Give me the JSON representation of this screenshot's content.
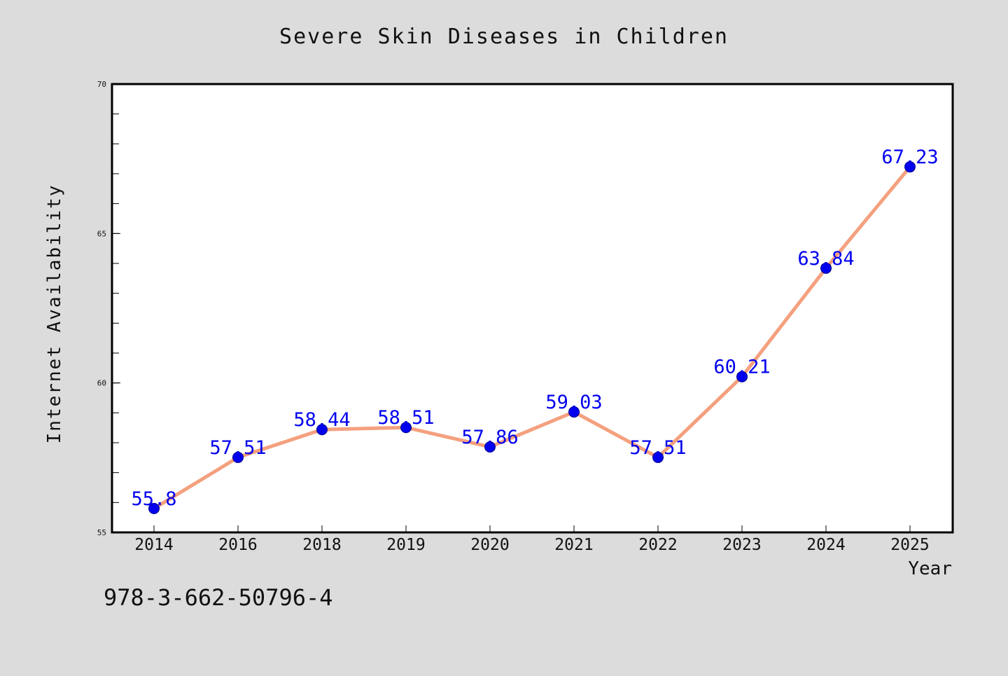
{
  "chart_data": {
    "type": "line",
    "title": "Severe Skin Diseases in Children",
    "xlabel": "Year",
    "ylabel": "Internet Availability",
    "categories": [
      "2014",
      "2016",
      "2018",
      "2019",
      "2020",
      "2021",
      "2022",
      "2023",
      "2024",
      "2025"
    ],
    "values": [
      55.8,
      57.51,
      58.44,
      58.51,
      57.86,
      59.03,
      57.51,
      60.21,
      63.84,
      67.23
    ],
    "data_labels": [
      "55.8",
      "57.51",
      "58.44",
      "58.51",
      "57.86",
      "59.03",
      "57.51",
      "60.21",
      "63.84",
      "67.23"
    ],
    "ylim": [
      55,
      70
    ],
    "yticks": [
      "55",
      "60",
      "65",
      "70"
    ],
    "grid": false,
    "line_color": "#f4a07e",
    "marker_color": "#0000ee",
    "label_color": "#0000ee",
    "background_color": "#dcdcdc",
    "plot_background": "#ffffff"
  },
  "annotation": {
    "isbn": "978-3-662-50796-4"
  }
}
